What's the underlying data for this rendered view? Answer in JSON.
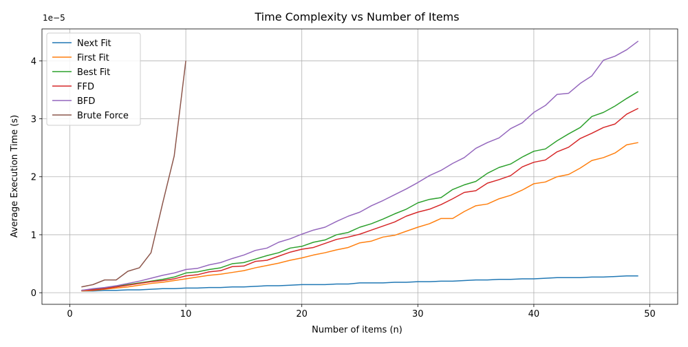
{
  "chart_data": {
    "type": "line",
    "title": "Time Complexity vs Number of Items",
    "xlabel": "Number of items (n)",
    "ylabel": "Average Execution Time (s)",
    "offset_text": "1e−5",
    "y_scale_factor": 1e-05,
    "xlim": [
      -2.4,
      52.4
    ],
    "ylim": [
      -0.2,
      4.55
    ],
    "xticks": [
      0,
      10,
      20,
      30,
      40,
      50
    ],
    "xtick_labels": [
      "0",
      "10",
      "20",
      "30",
      "40",
      "50"
    ],
    "yticks": [
      0,
      1,
      2,
      3,
      4
    ],
    "ytick_labels": [
      "0",
      "1",
      "2",
      "3",
      "4"
    ],
    "grid": true,
    "legend_position": "upper-left",
    "series": [
      {
        "name": "Next Fit",
        "color": "#1f77b4",
        "x": [
          1,
          2,
          3,
          4,
          5,
          6,
          7,
          8,
          9,
          10,
          11,
          12,
          13,
          14,
          15,
          16,
          17,
          18,
          19,
          20,
          21,
          22,
          23,
          24,
          25,
          26,
          27,
          28,
          29,
          30,
          31,
          32,
          33,
          34,
          35,
          36,
          37,
          38,
          39,
          40,
          41,
          42,
          43,
          44,
          45,
          46,
          47,
          48,
          49
        ],
        "values": [
          0.03,
          0.03,
          0.04,
          0.04,
          0.05,
          0.05,
          0.06,
          0.07,
          0.07,
          0.08,
          0.08,
          0.09,
          0.09,
          0.1,
          0.1,
          0.11,
          0.12,
          0.12,
          0.13,
          0.14,
          0.14,
          0.14,
          0.15,
          0.15,
          0.17,
          0.17,
          0.17,
          0.18,
          0.18,
          0.19,
          0.19,
          0.2,
          0.2,
          0.21,
          0.22,
          0.22,
          0.23,
          0.23,
          0.24,
          0.24,
          0.25,
          0.26,
          0.26,
          0.26,
          0.27,
          0.27,
          0.28,
          0.29,
          0.29
        ]
      },
      {
        "name": "First Fit",
        "color": "#ff7f0e",
        "x": [
          1,
          2,
          3,
          4,
          5,
          6,
          7,
          8,
          9,
          10,
          11,
          12,
          13,
          14,
          15,
          16,
          17,
          18,
          19,
          20,
          21,
          22,
          23,
          24,
          25,
          26,
          27,
          28,
          29,
          30,
          31,
          32,
          33,
          34,
          35,
          36,
          37,
          38,
          39,
          40,
          41,
          42,
          43,
          44,
          45,
          46,
          47,
          48,
          49
        ],
        "values": [
          0.03,
          0.04,
          0.06,
          0.08,
          0.1,
          0.13,
          0.16,
          0.18,
          0.21,
          0.24,
          0.27,
          0.3,
          0.32,
          0.35,
          0.38,
          0.43,
          0.47,
          0.51,
          0.56,
          0.6,
          0.65,
          0.69,
          0.74,
          0.78,
          0.86,
          0.89,
          0.96,
          0.99,
          1.06,
          1.13,
          1.19,
          1.28,
          1.28,
          1.4,
          1.5,
          1.53,
          1.62,
          1.68,
          1.77,
          1.88,
          1.91,
          2.0,
          2.04,
          2.15,
          2.28,
          2.33,
          2.41,
          2.55,
          2.59
        ]
      },
      {
        "name": "Best Fit",
        "color": "#2ca02c",
        "x": [
          1,
          2,
          3,
          4,
          5,
          6,
          7,
          8,
          9,
          10,
          11,
          12,
          13,
          14,
          15,
          16,
          17,
          18,
          19,
          20,
          21,
          22,
          23,
          24,
          25,
          26,
          27,
          28,
          29,
          30,
          31,
          32,
          33,
          34,
          35,
          36,
          37,
          38,
          39,
          40,
          41,
          42,
          43,
          44,
          45,
          46,
          47,
          48,
          49
        ],
        "values": [
          0.04,
          0.06,
          0.08,
          0.11,
          0.14,
          0.17,
          0.2,
          0.23,
          0.27,
          0.34,
          0.36,
          0.4,
          0.43,
          0.5,
          0.52,
          0.58,
          0.64,
          0.69,
          0.77,
          0.8,
          0.87,
          0.91,
          1.0,
          1.04,
          1.13,
          1.19,
          1.27,
          1.36,
          1.44,
          1.55,
          1.61,
          1.64,
          1.78,
          1.86,
          1.92,
          2.06,
          2.16,
          2.22,
          2.34,
          2.44,
          2.48,
          2.62,
          2.74,
          2.85,
          3.04,
          3.11,
          3.22,
          3.35,
          3.47
        ]
      },
      {
        "name": "FFD",
        "color": "#d62728",
        "x": [
          1,
          2,
          3,
          4,
          5,
          6,
          7,
          8,
          9,
          10,
          11,
          12,
          13,
          14,
          15,
          16,
          17,
          18,
          19,
          20,
          21,
          22,
          23,
          24,
          25,
          26,
          27,
          28,
          29,
          30,
          31,
          32,
          33,
          34,
          35,
          36,
          37,
          38,
          39,
          40,
          41,
          42,
          43,
          44,
          45,
          46,
          47,
          48,
          49
        ],
        "values": [
          0.04,
          0.05,
          0.07,
          0.1,
          0.13,
          0.16,
          0.19,
          0.21,
          0.24,
          0.29,
          0.31,
          0.36,
          0.38,
          0.45,
          0.46,
          0.54,
          0.56,
          0.63,
          0.7,
          0.75,
          0.78,
          0.85,
          0.92,
          0.96,
          1.01,
          1.08,
          1.15,
          1.22,
          1.32,
          1.39,
          1.44,
          1.52,
          1.62,
          1.73,
          1.76,
          1.89,
          1.95,
          2.02,
          2.17,
          2.25,
          2.29,
          2.43,
          2.51,
          2.66,
          2.75,
          2.85,
          2.91,
          3.08,
          3.18
        ]
      },
      {
        "name": "BFD",
        "color": "#9467bd",
        "x": [
          1,
          2,
          3,
          4,
          5,
          6,
          7,
          8,
          9,
          10,
          11,
          12,
          13,
          14,
          15,
          16,
          17,
          18,
          19,
          20,
          21,
          22,
          23,
          24,
          25,
          26,
          27,
          28,
          29,
          30,
          31,
          32,
          33,
          34,
          35,
          36,
          37,
          38,
          39,
          40,
          41,
          42,
          43,
          44,
          45,
          46,
          47,
          48,
          49
        ],
        "values": [
          0.04,
          0.07,
          0.09,
          0.12,
          0.16,
          0.2,
          0.25,
          0.3,
          0.34,
          0.4,
          0.42,
          0.48,
          0.52,
          0.59,
          0.65,
          0.73,
          0.77,
          0.87,
          0.93,
          1.01,
          1.08,
          1.13,
          1.23,
          1.32,
          1.39,
          1.5,
          1.59,
          1.69,
          1.79,
          1.9,
          2.02,
          2.11,
          2.23,
          2.33,
          2.49,
          2.59,
          2.67,
          2.83,
          2.93,
          3.11,
          3.23,
          3.42,
          3.44,
          3.61,
          3.74,
          4.01,
          4.08,
          4.19,
          4.34
        ]
      },
      {
        "name": "Brute Force",
        "color": "#8c564b",
        "x": [
          1,
          2,
          3,
          4,
          5,
          6,
          7,
          8,
          9,
          10
        ],
        "values": [
          0.1,
          0.14,
          0.22,
          0.22,
          0.37,
          0.43,
          0.69,
          1.54,
          2.36,
          4.0
        ]
      }
    ]
  }
}
